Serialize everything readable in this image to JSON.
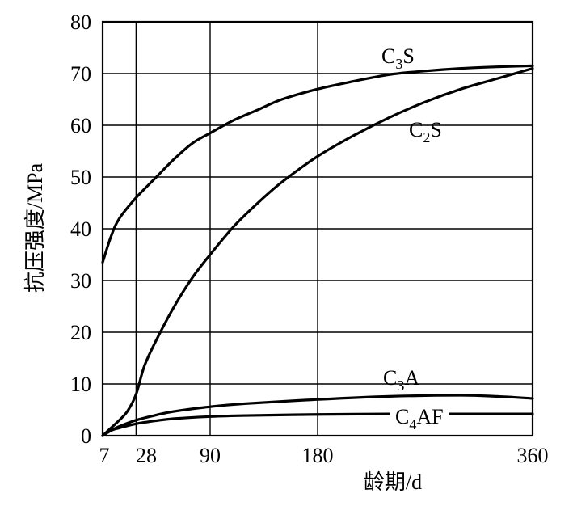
{
  "chart_data": {
    "type": "line",
    "xlabel": "龄期/d",
    "ylabel": "抗压强度/MPa",
    "xlim": [
      0,
      360
    ],
    "ylim": [
      0,
      80
    ],
    "xticks": [
      {
        "value": 7,
        "label": "7"
      },
      {
        "value": 28,
        "label": "28"
      },
      {
        "value": 90,
        "label": "90"
      },
      {
        "value": 180,
        "label": "180"
      },
      {
        "value": 360,
        "label": "360"
      }
    ],
    "yticks": [
      0,
      10,
      20,
      30,
      40,
      50,
      60,
      70,
      80
    ],
    "grid": true,
    "series": [
      {
        "name": "C3S",
        "label_main": "C",
        "label_sub": "3",
        "label_tail": "S",
        "x": [
          0,
          7,
          14,
          28,
          45,
          60,
          75,
          90,
          110,
          130,
          150,
          180,
          210,
          240,
          270,
          300,
          330,
          360
        ],
        "y": [
          33.5,
          38.5,
          42,
          46,
          50,
          53.5,
          56.5,
          58.5,
          61,
          63,
          65,
          67,
          68.5,
          69.8,
          70.5,
          71,
          71.3,
          71.5
        ]
      },
      {
        "name": "C2S",
        "label_main": "C",
        "label_sub": "2",
        "label_tail": "S",
        "x": [
          0,
          7,
          14,
          21,
          28,
          35,
          45,
          60,
          75,
          90,
          110,
          130,
          150,
          180,
          210,
          240,
          270,
          300,
          330,
          360
        ],
        "y": [
          0,
          1.5,
          3,
          4.8,
          8,
          13.5,
          18.5,
          25,
          30.5,
          35,
          40.5,
          45,
          49,
          54,
          58,
          61.5,
          64.5,
          67,
          69,
          71
        ]
      },
      {
        "name": "C3A",
        "label_main": "C",
        "label_sub": "3",
        "label_tail": "A",
        "x": [
          0,
          7,
          14,
          28,
          45,
          60,
          90,
          120,
          180,
          240,
          300,
          330,
          360
        ],
        "y": [
          0,
          1,
          1.8,
          3,
          4,
          4.7,
          5.6,
          6.2,
          7,
          7.6,
          7.8,
          7.6,
          7.2
        ]
      },
      {
        "name": "C4AF",
        "label_main": "C",
        "label_sub": "4",
        "label_tail": "AF",
        "x": [
          0,
          7,
          14,
          28,
          45,
          60,
          90,
          120,
          180,
          240,
          300,
          360
        ],
        "y": [
          0,
          1,
          1.5,
          2.3,
          2.9,
          3.3,
          3.7,
          3.9,
          4.1,
          4.2,
          4.2,
          4.2
        ]
      }
    ]
  }
}
